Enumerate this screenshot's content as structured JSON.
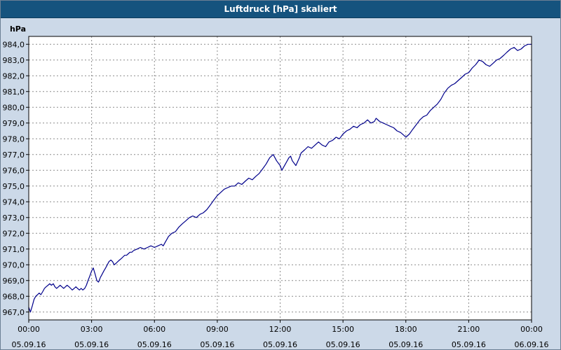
{
  "window": {
    "title": "Luftdruck [hPa] skaliert"
  },
  "colors": {
    "titlebar": "#15537e",
    "background": "#ccd9e8",
    "plot_background": "#ffffff",
    "line": "#00008b",
    "grid": "#8c8c8c",
    "axis": "#000000"
  },
  "chart_data": {
    "type": "line",
    "title": "Luftdruck [hPa] skaliert",
    "ylabel": "hPa",
    "xlabel": "",
    "grid": true,
    "legend": "none",
    "ylim": [
      966.5,
      984.5
    ],
    "ytick_min": 967,
    "ytick_max": 984,
    "ytick_step": 1,
    "ytick_decimal_separator": ",",
    "xlim": [
      0,
      24
    ],
    "x_ticks": [
      {
        "hour": 0,
        "time": "00:00",
        "date": "05.09.16"
      },
      {
        "hour": 3,
        "time": "03:00",
        "date": "05.09.16"
      },
      {
        "hour": 6,
        "time": "06:00",
        "date": "05.09.16"
      },
      {
        "hour": 9,
        "time": "09:00",
        "date": "05.09.16"
      },
      {
        "hour": 12,
        "time": "12:00",
        "date": "05.09.16"
      },
      {
        "hour": 15,
        "time": "15:00",
        "date": "05.09.16"
      },
      {
        "hour": 18,
        "time": "18:00",
        "date": "05.09.16"
      },
      {
        "hour": 21,
        "time": "21:00",
        "date": "05.09.16"
      },
      {
        "hour": 24,
        "time": "00:00",
        "date": "06.09.16"
      }
    ],
    "points": [
      [
        0.0,
        967.3
      ],
      [
        0.08,
        967.0
      ],
      [
        0.17,
        967.4
      ],
      [
        0.25,
        967.8
      ],
      [
        0.33,
        968.0
      ],
      [
        0.42,
        968.1
      ],
      [
        0.5,
        968.2
      ],
      [
        0.58,
        968.1
      ],
      [
        0.67,
        968.3
      ],
      [
        0.75,
        968.5
      ],
      [
        0.83,
        968.6
      ],
      [
        0.92,
        968.7
      ],
      [
        1.0,
        968.8
      ],
      [
        1.08,
        968.7
      ],
      [
        1.17,
        968.8
      ],
      [
        1.25,
        968.6
      ],
      [
        1.33,
        968.5
      ],
      [
        1.42,
        968.6
      ],
      [
        1.5,
        968.7
      ],
      [
        1.58,
        968.6
      ],
      [
        1.67,
        968.5
      ],
      [
        1.75,
        968.6
      ],
      [
        1.83,
        968.7
      ],
      [
        1.92,
        968.6
      ],
      [
        2.0,
        968.5
      ],
      [
        2.08,
        968.4
      ],
      [
        2.17,
        968.5
      ],
      [
        2.25,
        968.6
      ],
      [
        2.33,
        968.5
      ],
      [
        2.42,
        968.4
      ],
      [
        2.5,
        968.5
      ],
      [
        2.58,
        968.4
      ],
      [
        2.67,
        968.5
      ],
      [
        2.75,
        968.7
      ],
      [
        2.83,
        969.0
      ],
      [
        2.92,
        969.3
      ],
      [
        3.0,
        969.6
      ],
      [
        3.08,
        969.8
      ],
      [
        3.17,
        969.4
      ],
      [
        3.25,
        969.0
      ],
      [
        3.33,
        968.9
      ],
      [
        3.42,
        969.2
      ],
      [
        3.5,
        969.4
      ],
      [
        3.58,
        969.6
      ],
      [
        3.67,
        969.8
      ],
      [
        3.75,
        970.0
      ],
      [
        3.83,
        970.2
      ],
      [
        3.92,
        970.3
      ],
      [
        4.0,
        970.2
      ],
      [
        4.08,
        970.0
      ],
      [
        4.17,
        970.1
      ],
      [
        4.25,
        970.2
      ],
      [
        4.33,
        970.3
      ],
      [
        4.42,
        970.4
      ],
      [
        4.5,
        970.5
      ],
      [
        4.58,
        970.6
      ],
      [
        4.67,
        970.6
      ],
      [
        4.75,
        970.7
      ],
      [
        4.83,
        970.8
      ],
      [
        4.92,
        970.8
      ],
      [
        5.0,
        970.9
      ],
      [
        5.17,
        971.0
      ],
      [
        5.33,
        971.1
      ],
      [
        5.5,
        971.0
      ],
      [
        5.67,
        971.1
      ],
      [
        5.83,
        971.2
      ],
      [
        6.0,
        971.1
      ],
      [
        6.17,
        971.2
      ],
      [
        6.33,
        971.3
      ],
      [
        6.42,
        971.2
      ],
      [
        6.5,
        971.4
      ],
      [
        6.67,
        971.8
      ],
      [
        6.83,
        972.0
      ],
      [
        7.0,
        972.1
      ],
      [
        7.17,
        972.4
      ],
      [
        7.33,
        972.6
      ],
      [
        7.5,
        972.8
      ],
      [
        7.67,
        973.0
      ],
      [
        7.83,
        973.1
      ],
      [
        8.0,
        973.0
      ],
      [
        8.17,
        973.2
      ],
      [
        8.33,
        973.3
      ],
      [
        8.5,
        973.5
      ],
      [
        8.67,
        973.8
      ],
      [
        8.83,
        974.1
      ],
      [
        9.0,
        974.4
      ],
      [
        9.17,
        974.6
      ],
      [
        9.33,
        974.8
      ],
      [
        9.5,
        974.9
      ],
      [
        9.67,
        975.0
      ],
      [
        9.83,
        975.0
      ],
      [
        10.0,
        975.2
      ],
      [
        10.17,
        975.1
      ],
      [
        10.33,
        975.3
      ],
      [
        10.5,
        975.5
      ],
      [
        10.67,
        975.4
      ],
      [
        10.83,
        975.6
      ],
      [
        11.0,
        975.8
      ],
      [
        11.17,
        976.1
      ],
      [
        11.33,
        976.4
      ],
      [
        11.5,
        976.8
      ],
      [
        11.67,
        977.0
      ],
      [
        11.83,
        976.6
      ],
      [
        12.0,
        976.3
      ],
      [
        12.08,
        976.0
      ],
      [
        12.25,
        976.4
      ],
      [
        12.42,
        976.8
      ],
      [
        12.5,
        976.9
      ],
      [
        12.58,
        976.6
      ],
      [
        12.75,
        976.3
      ],
      [
        12.92,
        976.8
      ],
      [
        13.0,
        977.1
      ],
      [
        13.17,
        977.3
      ],
      [
        13.33,
        977.5
      ],
      [
        13.5,
        977.4
      ],
      [
        13.67,
        977.6
      ],
      [
        13.83,
        977.8
      ],
      [
        14.0,
        977.6
      ],
      [
        14.17,
        977.5
      ],
      [
        14.33,
        977.8
      ],
      [
        14.5,
        977.9
      ],
      [
        14.67,
        978.1
      ],
      [
        14.83,
        978.0
      ],
      [
        15.0,
        978.3
      ],
      [
        15.17,
        978.5
      ],
      [
        15.33,
        978.6
      ],
      [
        15.5,
        978.8
      ],
      [
        15.67,
        978.7
      ],
      [
        15.83,
        978.9
      ],
      [
        16.0,
        979.0
      ],
      [
        16.17,
        979.2
      ],
      [
        16.33,
        979.0
      ],
      [
        16.5,
        979.1
      ],
      [
        16.58,
        979.3
      ],
      [
        16.75,
        979.1
      ],
      [
        16.92,
        979.0
      ],
      [
        17.08,
        978.9
      ],
      [
        17.25,
        978.8
      ],
      [
        17.42,
        978.7
      ],
      [
        17.58,
        978.5
      ],
      [
        17.75,
        978.4
      ],
      [
        17.92,
        978.2
      ],
      [
        18.0,
        978.1
      ],
      [
        18.17,
        978.3
      ],
      [
        18.33,
        978.6
      ],
      [
        18.5,
        978.9
      ],
      [
        18.67,
        979.2
      ],
      [
        18.83,
        979.4
      ],
      [
        19.0,
        979.5
      ],
      [
        19.17,
        979.8
      ],
      [
        19.33,
        980.0
      ],
      [
        19.5,
        980.2
      ],
      [
        19.67,
        980.5
      ],
      [
        19.83,
        980.9
      ],
      [
        20.0,
        981.2
      ],
      [
        20.17,
        981.4
      ],
      [
        20.33,
        981.5
      ],
      [
        20.5,
        981.7
      ],
      [
        20.67,
        981.9
      ],
      [
        20.83,
        982.1
      ],
      [
        21.0,
        982.2
      ],
      [
        21.17,
        982.5
      ],
      [
        21.33,
        982.7
      ],
      [
        21.5,
        983.0
      ],
      [
        21.67,
        982.9
      ],
      [
        21.83,
        982.7
      ],
      [
        22.0,
        982.6
      ],
      [
        22.17,
        982.8
      ],
      [
        22.33,
        983.0
      ],
      [
        22.5,
        983.1
      ],
      [
        22.67,
        983.3
      ],
      [
        22.83,
        983.5
      ],
      [
        23.0,
        983.7
      ],
      [
        23.17,
        983.8
      ],
      [
        23.33,
        983.6
      ],
      [
        23.5,
        983.7
      ],
      [
        23.67,
        983.9
      ],
      [
        23.83,
        984.0
      ],
      [
        24.0,
        984.0
      ]
    ]
  }
}
